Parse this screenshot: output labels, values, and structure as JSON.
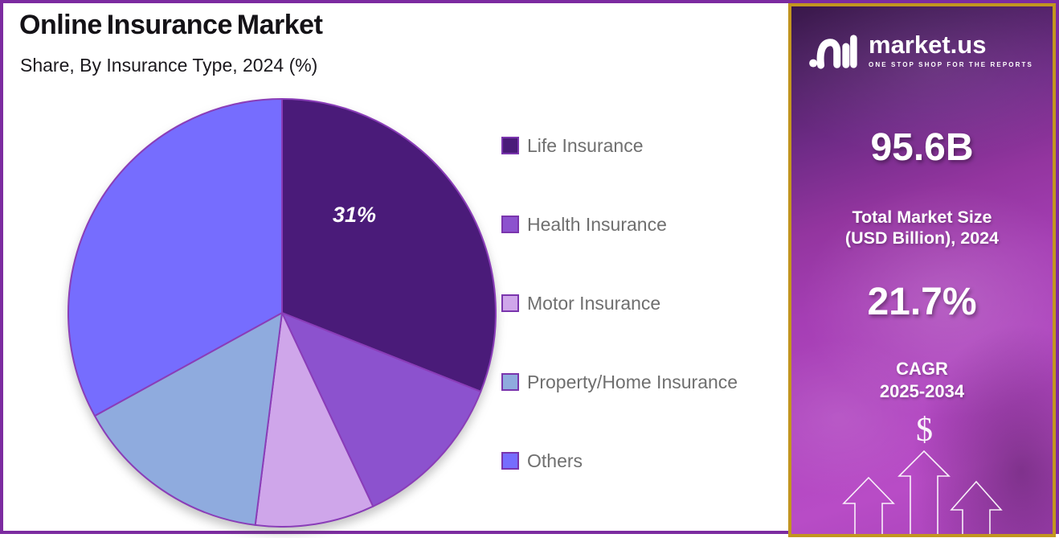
{
  "chart_data": {
    "type": "pie",
    "title": "Online Insurance Market",
    "subtitle": "Share, By Insurance Type, 2024 (%)",
    "unit": "%",
    "categories": [
      "Life Insurance",
      "Health Insurance",
      "Motor Insurance",
      "Property/Home Insurance",
      "Others"
    ],
    "values": [
      31,
      12,
      9,
      15,
      33
    ],
    "colors": [
      "#4A1B79",
      "#8C52CE",
      "#CFA6EA",
      "#8FABDE",
      "#766DFE"
    ],
    "data_label": {
      "slice": "Life Insurance",
      "text": "31%"
    },
    "start_angle": "top",
    "direction": "clockwise",
    "legend_position": "right",
    "slice_stroke_color": "#8A3DB8"
  },
  "sidebar": {
    "brand": "market.us",
    "tagline": "ONE STOP SHOP FOR THE REPORTS",
    "market_size": {
      "value": "95.6B",
      "label_line1": "Total Market Size",
      "label_line2": "(USD Billion), 2024"
    },
    "cagr": {
      "value": "21.7%",
      "label_line1": "CAGR",
      "label_line2": "2025-2034"
    },
    "dollar_symbol": "$",
    "colors": {
      "border_gold": "#C2961F",
      "gradient_top": "#39184A",
      "gradient_bottom": "#B84CC6"
    }
  },
  "frame": {
    "border_color": "#7C2BA0"
  }
}
